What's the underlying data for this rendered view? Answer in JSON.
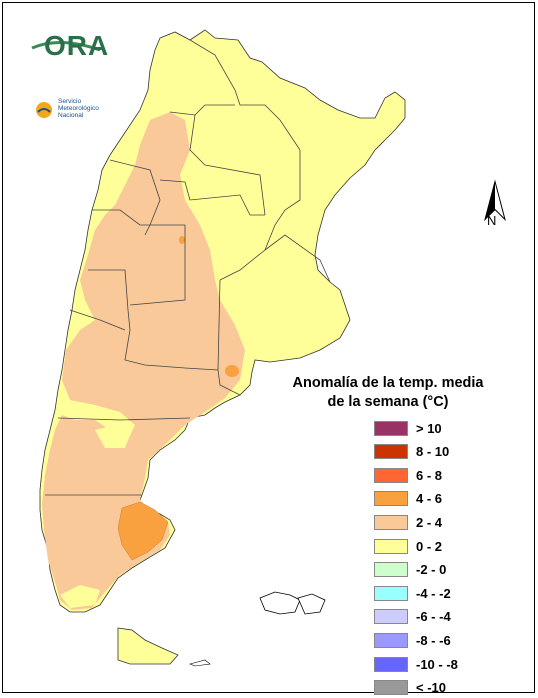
{
  "logos": {
    "ora": "ORA",
    "smn_line1": "Servicio",
    "smn_line2": "Meteorológico",
    "smn_line3": "Nacional"
  },
  "north": {
    "label": "N"
  },
  "legend": {
    "title_line1": "Anomalía de la temp. media",
    "title_line2": "de la semana (°C)",
    "items": [
      {
        "label": "> 10",
        "color": "#993366"
      },
      {
        "label": "8 - 10",
        "color": "#cc3300"
      },
      {
        "label": "6 - 8",
        "color": "#ff6633"
      },
      {
        "label": "4 - 6",
        "color": "#f9a03f"
      },
      {
        "label": "2 - 4",
        "color": "#f9c99a"
      },
      {
        "label": "0 - 2",
        "color": "#ffff99"
      },
      {
        "label": "-2 - 0",
        "color": "#ccffcc"
      },
      {
        "label": "-4 - -2",
        "color": "#99ffff"
      },
      {
        "label": "-6 - -4",
        "color": "#ccccff"
      },
      {
        "label": "-8 - -6",
        "color": "#9999ff"
      },
      {
        "label": "-10 - -8",
        "color": "#6666ff"
      },
      {
        "label": "< -10",
        "color": "#999999"
      }
    ]
  }
}
